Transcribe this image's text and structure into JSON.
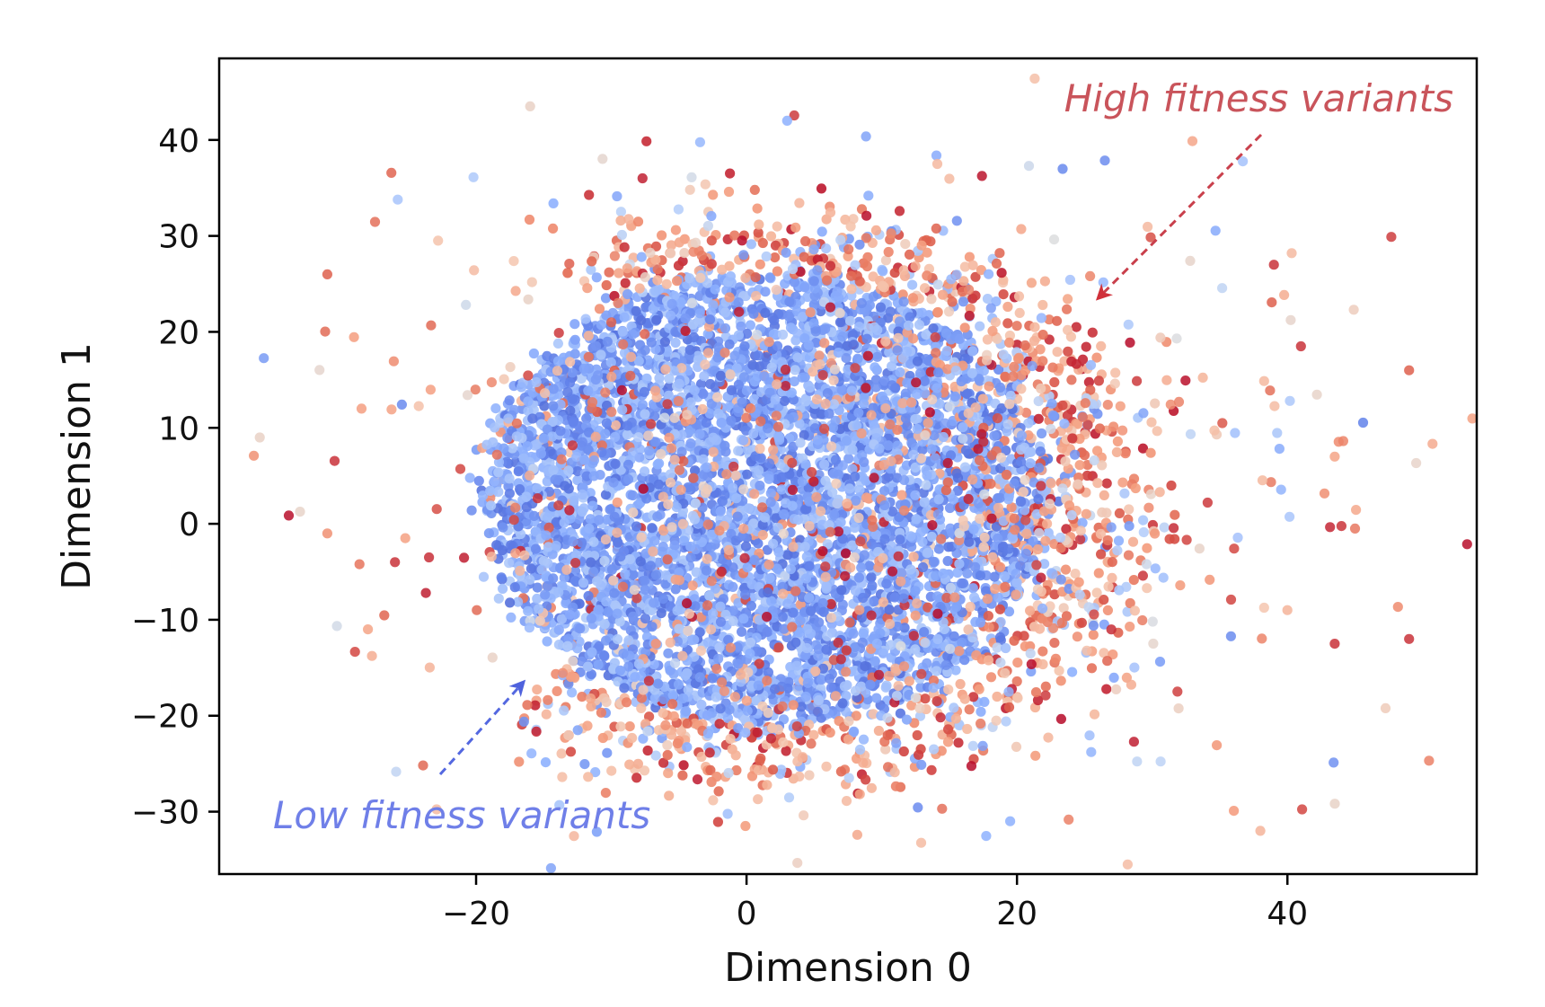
{
  "chart_data": {
    "type": "scatter",
    "title": "",
    "xlabel": "Dimension 0",
    "ylabel": "Dimension 1",
    "xlim": [
      -39,
      54
    ],
    "ylim": [
      -36.5,
      48.5
    ],
    "xticks": [
      -20,
      0,
      20,
      40
    ],
    "yticks": [
      -30,
      -20,
      -10,
      0,
      10,
      20,
      30,
      40
    ],
    "xtick_labels": [
      "−20",
      "0",
      "20",
      "40"
    ],
    "ytick_labels": [
      "−30",
      "−20",
      "−10",
      "0",
      "10",
      "20",
      "30",
      "40"
    ],
    "grid": false,
    "colormap": "coolwarm",
    "colors": {
      "low": "#6788ee",
      "mid": "#dddddd",
      "high": "#c0282d"
    },
    "main_cluster": {
      "center": [
        1.5,
        2.5
      ],
      "radius_x": 21,
      "radius_y": 23.5
    },
    "annotations": [
      {
        "text": "High fitness variants",
        "color": "#c9545b",
        "xy": [
          26,
          23.5
        ],
        "text_xy": [
          38,
          44
        ]
      },
      {
        "text": "Low fitness variants",
        "color": "#6f7fe8",
        "xy": [
          -16.5,
          -16.5
        ],
        "text_xy": [
          -20,
          -30
        ]
      }
    ]
  }
}
